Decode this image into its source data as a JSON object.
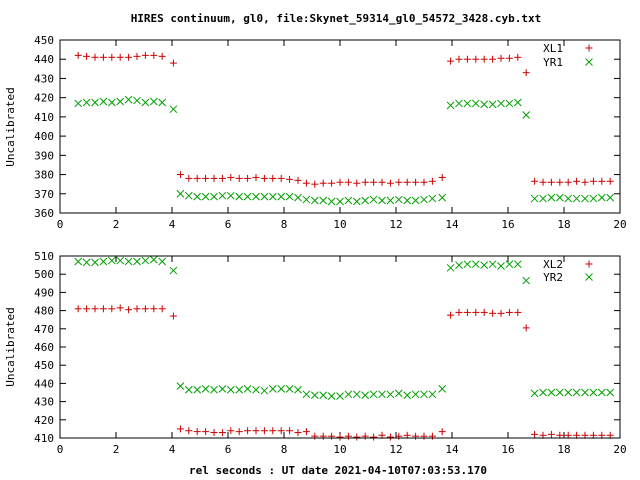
{
  "title": "HIRES continuum, gl0, file:Skynet_59314_gl0_54572_3428.cyb.txt",
  "xlabel": "rel seconds : UT date 2021-04-10T07:03:53.170",
  "chart_data": [
    {
      "type": "scatter",
      "ylabel": "Uncalibrated",
      "xlim": [
        0,
        20
      ],
      "ylim": [
        360,
        450
      ],
      "xticks": [
        0,
        2,
        4,
        6,
        8,
        10,
        12,
        14,
        16,
        18,
        20
      ],
      "yticks": [
        360,
        370,
        380,
        390,
        400,
        410,
        420,
        430,
        440,
        450
      ],
      "grid": false,
      "legend_position": "top-right",
      "series": [
        {
          "name": "XL1",
          "marker": "plus",
          "color": "#cc0000",
          "x": [
            0.65,
            0.95,
            1.25,
            1.55,
            1.85,
            2.15,
            2.45,
            2.75,
            3.05,
            3.35,
            3.65,
            4.05,
            4.3,
            4.6,
            4.9,
            5.2,
            5.5,
            5.8,
            6.1,
            6.4,
            6.7,
            7.0,
            7.3,
            7.6,
            7.9,
            8.2,
            8.5,
            8.8,
            9.1,
            9.4,
            9.7,
            10.0,
            10.3,
            10.6,
            10.9,
            11.2,
            11.5,
            11.8,
            12.1,
            12.4,
            12.7,
            13.0,
            13.3,
            13.65,
            13.95,
            14.25,
            14.55,
            14.85,
            15.15,
            15.45,
            15.75,
            16.05,
            16.35,
            16.65,
            16.95,
            17.25,
            17.55,
            17.85,
            18.15,
            18.45,
            18.75,
            19.05,
            19.35,
            19.65
          ],
          "y": [
            442,
            441.5,
            441,
            441,
            441,
            441,
            441,
            441.5,
            442,
            442,
            441.5,
            438,
            380,
            378,
            378,
            378,
            378,
            378,
            378.5,
            378,
            378,
            378.5,
            378,
            378,
            378,
            377.5,
            377,
            375.5,
            375,
            375.5,
            375.5,
            376,
            376,
            375.5,
            376,
            376,
            376,
            375.5,
            376,
            376,
            376,
            376,
            376.5,
            378.5,
            439,
            440,
            440,
            440,
            440,
            440,
            440.5,
            440.5,
            441,
            433,
            376.5,
            376,
            376,
            376,
            376,
            376.5,
            376,
            376.5,
            376.5,
            376.5
          ]
        },
        {
          "name": "YR1",
          "marker": "cross",
          "color": "#00a000",
          "x": [
            0.65,
            0.95,
            1.25,
            1.55,
            1.85,
            2.15,
            2.45,
            2.75,
            3.05,
            3.35,
            3.65,
            4.05,
            4.3,
            4.6,
            4.9,
            5.2,
            5.5,
            5.8,
            6.1,
            6.4,
            6.7,
            7.0,
            7.3,
            7.6,
            7.9,
            8.2,
            8.5,
            8.8,
            9.1,
            9.4,
            9.7,
            10.0,
            10.3,
            10.6,
            10.9,
            11.2,
            11.5,
            11.8,
            12.1,
            12.4,
            12.7,
            13.0,
            13.3,
            13.65,
            13.95,
            14.25,
            14.55,
            14.85,
            15.15,
            15.45,
            15.75,
            16.05,
            16.35,
            16.65,
            16.95,
            17.25,
            17.55,
            17.85,
            18.15,
            18.45,
            18.75,
            19.05,
            19.35,
            19.65
          ],
          "y": [
            417,
            417.5,
            417.5,
            418,
            417.5,
            418,
            419,
            418.5,
            417.5,
            418,
            417.5,
            414,
            370,
            369,
            368.5,
            368.5,
            368.5,
            369,
            369,
            368.5,
            368.5,
            368.5,
            368.5,
            368.5,
            368.5,
            368.5,
            368,
            367,
            366.5,
            366.5,
            366,
            366,
            366.5,
            366,
            366.5,
            367,
            366.5,
            366.5,
            367,
            366.5,
            366.5,
            367,
            367.5,
            368,
            416,
            417,
            417,
            417,
            416.5,
            416.5,
            417,
            417,
            417.5,
            411,
            367.5,
            367.5,
            368,
            368,
            367.5,
            367.5,
            367.5,
            367.5,
            368,
            368
          ]
        }
      ]
    },
    {
      "type": "scatter",
      "ylabel": "Uncalibrated",
      "xlabel": "rel seconds : UT date 2021-04-10T07:03:53.170",
      "xlim": [
        0,
        20
      ],
      "ylim": [
        410,
        510
      ],
      "xticks": [
        0,
        2,
        4,
        6,
        8,
        10,
        12,
        14,
        16,
        18,
        20
      ],
      "yticks": [
        410,
        420,
        430,
        440,
        450,
        460,
        470,
        480,
        490,
        500,
        510
      ],
      "grid": false,
      "legend_position": "top-right",
      "series": [
        {
          "name": "XL2",
          "marker": "plus",
          "color": "#cc0000",
          "x": [
            0.65,
            0.95,
            1.25,
            1.55,
            1.85,
            2.15,
            2.45,
            2.75,
            3.05,
            3.35,
            3.65,
            4.05,
            4.3,
            4.6,
            4.9,
            5.2,
            5.5,
            5.8,
            6.1,
            6.4,
            6.7,
            7.0,
            7.3,
            7.6,
            7.9,
            8.2,
            8.5,
            8.8,
            9.1,
            9.4,
            9.7,
            10.0,
            10.3,
            10.6,
            10.9,
            11.2,
            11.5,
            11.8,
            12.1,
            12.4,
            12.7,
            13.0,
            13.3,
            13.65,
            13.95,
            14.25,
            14.55,
            14.85,
            15.15,
            15.45,
            15.75,
            16.05,
            16.35,
            16.65,
            16.95,
            17.25,
            17.55,
            17.85,
            18.15,
            18.45,
            18.75,
            19.05,
            19.35,
            19.65
          ],
          "y": [
            481,
            481,
            481,
            481,
            481,
            481.5,
            480.5,
            481,
            481,
            481,
            481,
            477,
            415,
            414,
            413.5,
            413.5,
            413,
            413,
            414,
            413.5,
            414,
            414,
            414,
            414,
            414,
            414,
            413,
            413.5,
            411,
            411,
            411,
            410.5,
            411,
            410.5,
            411,
            410.5,
            411.5,
            410.5,
            411,
            411.5,
            411,
            411,
            411,
            413.5,
            477.5,
            479,
            479,
            479,
            479,
            478.5,
            478.5,
            479,
            479,
            470.5,
            412,
            411.5,
            412,
            411.5,
            411.5,
            411.5,
            411.5,
            411.5,
            411.5,
            411.5
          ]
        },
        {
          "name": "YR2",
          "marker": "cross",
          "color": "#00a000",
          "x": [
            0.65,
            0.95,
            1.25,
            1.55,
            1.85,
            2.15,
            2.45,
            2.75,
            3.05,
            3.35,
            3.65,
            4.05,
            4.3,
            4.6,
            4.9,
            5.2,
            5.5,
            5.8,
            6.1,
            6.4,
            6.7,
            7.0,
            7.3,
            7.6,
            7.9,
            8.2,
            8.5,
            8.8,
            9.1,
            9.4,
            9.7,
            10.0,
            10.3,
            10.6,
            10.9,
            11.2,
            11.5,
            11.8,
            12.1,
            12.4,
            12.7,
            13.0,
            13.3,
            13.65,
            13.95,
            14.25,
            14.55,
            14.85,
            15.15,
            15.45,
            15.75,
            16.05,
            16.35,
            16.65,
            16.95,
            17.25,
            17.55,
            17.85,
            18.15,
            18.45,
            18.75,
            19.05,
            19.35,
            19.65
          ],
          "y": [
            507,
            506.5,
            506.5,
            507,
            507.5,
            507.5,
            507,
            507,
            507.5,
            508,
            507,
            502,
            438.5,
            436.5,
            436.5,
            437,
            436.5,
            437,
            436.5,
            436.5,
            437,
            436.5,
            436,
            437,
            437,
            437,
            436.5,
            434,
            433.5,
            433.5,
            433,
            433,
            434,
            434,
            433.5,
            434,
            434,
            434,
            434.5,
            433.5,
            434,
            434,
            434,
            437,
            503.5,
            505,
            505.5,
            505.5,
            505,
            505.5,
            504.5,
            505.5,
            505.5,
            496.5,
            434.5,
            435,
            435,
            435,
            435,
            435,
            435,
            435,
            435,
            435
          ]
        }
      ]
    }
  ]
}
